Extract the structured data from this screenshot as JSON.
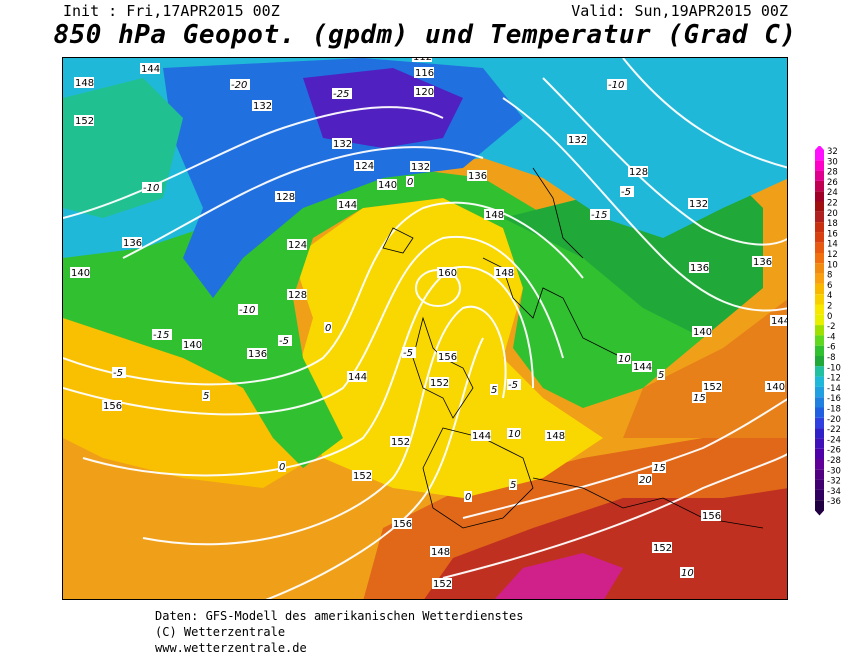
{
  "header": {
    "init": "Init : Fri,17APR2015 00Z",
    "valid": "Valid: Sun,19APR2015 00Z",
    "title": "850 hPa Geopot. (gpdm) und Temperatur (Grad C)"
  },
  "legend": {
    "values": [
      "32",
      "30",
      "28",
      "26",
      "24",
      "22",
      "20",
      "18",
      "16",
      "14",
      "12",
      "10",
      "8",
      "6",
      "4",
      "2",
      "0",
      "-2",
      "-4",
      "-6",
      "-8",
      "-10",
      "-12",
      "-14",
      "-16",
      "-18",
      "-20",
      "-22",
      "-24",
      "-26",
      "-28",
      "-30",
      "-32",
      "-34",
      "-36"
    ],
    "colors": [
      "#ff10ff",
      "#ff00c8",
      "#e00090",
      "#c00050",
      "#a00028",
      "#a01010",
      "#b02020",
      "#c83010",
      "#d84010",
      "#e85a10",
      "#f07010",
      "#f08c10",
      "#f8a010",
      "#f8b800",
      "#f8d000",
      "#f8e800",
      "#e8f000",
      "#a0e000",
      "#60d820",
      "#30c030",
      "#20a838",
      "#20c0a0",
      "#20b8d8",
      "#20a0e0",
      "#2080e0",
      "#2060e0",
      "#3040e0",
      "#3020c8",
      "#4010b8",
      "#5000a8",
      "#600098",
      "#500080",
      "#400070",
      "#300060",
      "#200040"
    ]
  },
  "geopotential_labels": [
    "144",
    "148",
    "152",
    "132",
    "136",
    "140",
    "144",
    "152",
    "156",
    "160",
    "156",
    "152",
    "148",
    "144",
    "140",
    "136",
    "132",
    "128",
    "124",
    "120",
    "116",
    "112",
    "148",
    "132",
    "128",
    "136",
    "140",
    "144",
    "152",
    "156",
    "152",
    "148",
    "152",
    "156",
    "152",
    "124",
    "128",
    "136",
    "140",
    "144",
    "148",
    "132",
    "136",
    "140",
    "144",
    "132"
  ],
  "temperature_labels": [
    "-10",
    "-15",
    "-20",
    "-25",
    "-5",
    "0",
    "5",
    "10",
    "15",
    "20",
    "-5",
    "-10",
    "-15",
    "0",
    "5",
    "10",
    "15",
    "-5",
    "0",
    "5",
    "10",
    "-10",
    "-5",
    "0",
    "5",
    "10",
    "15",
    "-5"
  ],
  "footer": {
    "line1": "Daten: GFS-Modell des amerikanischen Wetterdienstes",
    "line2": "(C) Wetterzentrale",
    "line3": "www.wetterzentrale.de"
  }
}
